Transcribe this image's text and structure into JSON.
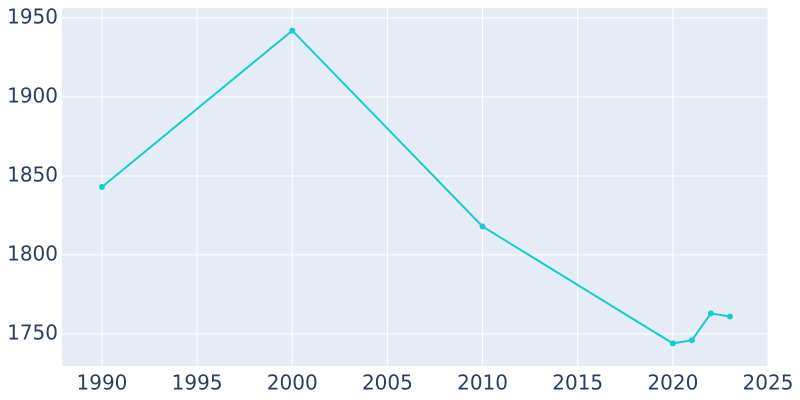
{
  "chart_data": {
    "type": "line",
    "x": [
      1990,
      2000,
      2010,
      2020,
      2021,
      2022,
      2023
    ],
    "series": [
      {
        "color": "#17cccc",
        "values": [
          1843,
          1942,
          1818,
          1744,
          1746,
          1763,
          1761
        ]
      }
    ],
    "xlim": [
      1987.9,
      2025
    ],
    "xticks": [
      1990,
      1995,
      2000,
      2005,
      2010,
      2015,
      2020,
      2025
    ],
    "ylim": [
      1729.7,
      1956.3
    ],
    "yticks": [
      1750,
      1800,
      1850,
      1900,
      1950
    ],
    "grid": true
  }
}
